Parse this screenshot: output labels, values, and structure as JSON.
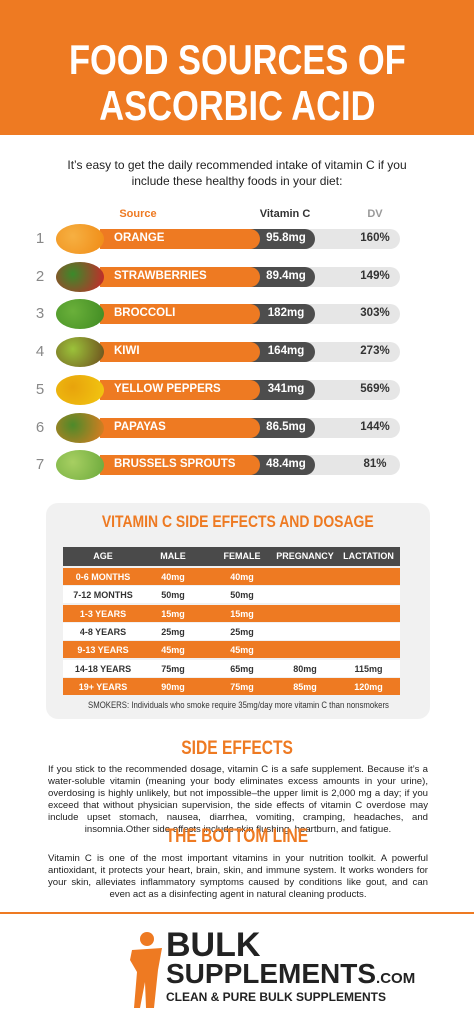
{
  "header": {
    "title_line1": "FOOD SOURCES OF",
    "title_line2": "ASCORBIC ACID"
  },
  "intro": "It’s easy to get the daily recommended intake of vitamin C if you include these healthy foods in your diet:",
  "foods": {
    "columns": [
      "Source",
      "Vitamin C",
      "DV"
    ],
    "rows": [
      [
        "1",
        "ORANGE",
        "95.8mg",
        "160%"
      ],
      [
        "2",
        "STRAWBERRIES",
        "89.4mg",
        "149%"
      ],
      [
        "3",
        "BROCCOLI",
        "182mg",
        "303%"
      ],
      [
        "4",
        "KIWI",
        "164mg",
        "273%"
      ],
      [
        "5",
        "YELLOW PEPPERS",
        "341mg",
        "569%"
      ],
      [
        "6",
        "PAPAYAS",
        "86.5mg",
        "144%"
      ],
      [
        "7",
        "BRUSSELS SPROUTS",
        "48.4mg",
        "81%"
      ]
    ]
  },
  "dosage": {
    "title": "VITAMIN C SIDE EFFECTS AND DOSAGE",
    "columns": [
      "AGE",
      "MALE",
      "FEMALE",
      "PREGNANCY",
      "LACTATION"
    ],
    "rows": [
      [
        "0-6 MONTHS",
        "40mg",
        "40mg"
      ],
      [
        "7-12 MONTHS",
        "50mg",
        "50mg"
      ],
      [
        "1-3 YEARS",
        "15mg",
        "15mg"
      ],
      [
        "4-8 YEARS",
        "25mg",
        "25mg"
      ],
      [
        "9-13 YEARS",
        "45mg",
        "45mg"
      ],
      [
        "14-18 YEARS",
        "75mg",
        "65mg",
        "80mg",
        "115mg"
      ],
      [
        "19+ YEARS",
        "90mg",
        "75mg",
        "85mg",
        "120mg"
      ]
    ],
    "note": "SMOKERS: Individuals who smoke require 35mg/day more vitamin C than nonsmokers"
  },
  "side_effects": {
    "title": "SIDE EFFECTS",
    "text": "If you stick to the recommended dosage, vitamin C is a safe supplement. Because it’s a water-soluble vitamin (meaning your body eliminates excess amounts in your urine), overdosing is highly unlikely, but not impossible–the upper limit is 2,000 mg a day; if you exceed that without physician supervision, the side effects of vitamin C overdose may include upset stomach, nausea, diarrhea, vomiting, cramping, headaches, and insomnia.Other side effects include skin flushing, heartburn, and fatigue."
  },
  "bottom_line": {
    "title": "THE BOTTOM LINE",
    "text": "Vitamin C is one of the most important vitamins in your nutrition toolkit. A powerful antioxidant, it protects your heart, brain, skin, and immune system. It works wonders for your skin, alleviates inflammatory symptoms caused by conditions like gout, and can even act as a disinfecting agent in natural cleaning products."
  },
  "logo": {
    "line1": "BULK",
    "line2": "SUPPLEMENTS",
    "domain": ".COM",
    "tagline": "CLEAN & PURE BULK SUPPLEMENTS"
  }
}
